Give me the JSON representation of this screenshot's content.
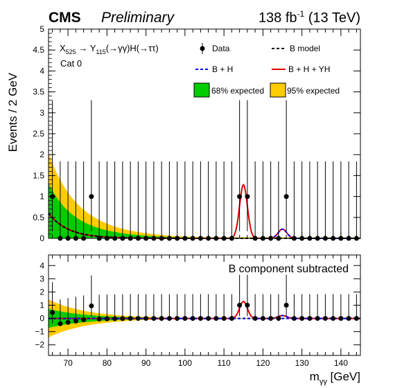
{
  "header": {
    "experiment": "CMS",
    "status": "Preliminary",
    "lumi_prefix": "138 fb",
    "lumi_exp": "-1",
    "lumi_suffix": " (13 TeV)"
  },
  "chart_data": [
    {
      "type": "line",
      "panel": "main",
      "ylabel": "Events / 2 GeV",
      "xlim": [
        65,
        145
      ],
      "ylim": [
        0,
        5
      ],
      "yticks": [
        0,
        0.5,
        1,
        1.5,
        2,
        2.5,
        3,
        3.5,
        4,
        4.5,
        5
      ],
      "grid": false,
      "process_label": {
        "x_main": "X",
        "x_sub": "525",
        "arrow1": " → Y",
        "y_sub": "115",
        "paren1": "(→γγ)H(→ττ)"
      },
      "category": "Cat 0",
      "legend": {
        "data": "Data",
        "b_model": "B  model",
        "b_h": "B + H",
        "b_h_yh": "B + H + YH",
        "band68": "68% expected",
        "band95": "95% expected"
      },
      "colors": {
        "data": "#000000",
        "b_model": "#000000",
        "b_h": "#0000ee",
        "b_h_yh": "#e00000",
        "band68": "#00cc00",
        "band95": "#ffcc00"
      },
      "data_points": {
        "x": [
          66,
          68,
          70,
          72,
          74,
          76,
          78,
          80,
          82,
          84,
          86,
          88,
          90,
          92,
          94,
          96,
          98,
          100,
          102,
          104,
          106,
          108,
          110,
          112,
          114,
          116,
          118,
          120,
          122,
          124,
          126,
          128,
          130,
          132,
          134,
          136,
          138,
          140,
          142,
          144
        ],
        "y": [
          1,
          0,
          0,
          0,
          0,
          1,
          0,
          0,
          0,
          0,
          0,
          0,
          0,
          0,
          0,
          0,
          0,
          0,
          0,
          0,
          0,
          0,
          0,
          0,
          1,
          1,
          0,
          0,
          0,
          0,
          1,
          0,
          0,
          0,
          0,
          0,
          0,
          0,
          0,
          0
        ],
        "err_up": [
          2.3,
          1.84,
          1.84,
          1.84,
          1.84,
          2.3,
          1.84,
          1.84,
          1.84,
          1.84,
          1.84,
          1.84,
          1.84,
          1.84,
          1.84,
          1.84,
          1.84,
          1.84,
          1.84,
          1.84,
          1.84,
          1.84,
          1.84,
          1.84,
          2.3,
          2.3,
          1.84,
          1.84,
          1.84,
          1.84,
          2.3,
          1.84,
          1.84,
          1.84,
          1.84,
          1.84,
          1.84,
          1.84,
          1.84,
          1.84
        ],
        "err_down": [
          0.83,
          0,
          0,
          0,
          0,
          0.83,
          0,
          0,
          0,
          0,
          0,
          0,
          0,
          0,
          0,
          0,
          0,
          0,
          0,
          0,
          0,
          0,
          0,
          0,
          0.83,
          0.83,
          0,
          0,
          0,
          0,
          0.83,
          0,
          0,
          0,
          0,
          0,
          0,
          0,
          0,
          0
        ]
      },
      "background": {
        "norm": 0.6,
        "x0": 65,
        "decay": 5.0
      },
      "signal_yh": {
        "mean": 115,
        "amplitude": 1.28,
        "sigma": 1.0
      },
      "signal_h": {
        "mean": 125,
        "amplitude": 0.22,
        "sigma": 1.1
      }
    },
    {
      "type": "line",
      "panel": "ratio",
      "xlabel": "m",
      "xlabel_sub": "γγ",
      "xlabel_unit": " [GeV]",
      "xlim": [
        65,
        145
      ],
      "ylim": [
        -2.8,
        4.8
      ],
      "xticks": [
        70,
        80,
        90,
        100,
        110,
        120,
        130,
        140
      ],
      "yticks": [
        -2,
        -1,
        0,
        1,
        2,
        3,
        4
      ],
      "annotation": "B component subtracted",
      "data_points": {
        "x": [
          66,
          68,
          70,
          72,
          74,
          76,
          78,
          80,
          82,
          84,
          86,
          88,
          90,
          92,
          94,
          96,
          98,
          100,
          102,
          104,
          106,
          108,
          110,
          112,
          114,
          116,
          118,
          120,
          122,
          124,
          126,
          128,
          130,
          132,
          134,
          136,
          138,
          140,
          142,
          144
        ],
        "y": [
          0.45,
          -0.4,
          -0.3,
          -0.2,
          -0.1,
          0.95,
          -0.05,
          -0.03,
          -0.02,
          -0.01,
          0,
          0,
          0,
          0,
          0,
          0,
          0,
          0,
          0,
          0,
          0,
          0,
          0,
          0,
          1.0,
          1.0,
          0,
          0,
          0,
          0,
          1.0,
          0,
          0,
          0,
          0,
          0,
          0,
          0,
          0,
          0
        ],
        "err_up": [
          2.3,
          1.84,
          1.84,
          1.84,
          1.84,
          2.3,
          1.84,
          1.84,
          1.84,
          1.84,
          1.84,
          1.84,
          1.84,
          1.84,
          1.84,
          1.84,
          1.84,
          1.84,
          1.84,
          1.84,
          1.84,
          1.84,
          1.84,
          1.84,
          2.3,
          2.3,
          1.84,
          1.84,
          1.84,
          1.84,
          2.3,
          1.84,
          1.84,
          1.84,
          1.84,
          1.84,
          1.84,
          1.84,
          1.84,
          1.84
        ],
        "err_down": [
          0.83,
          0,
          0,
          0,
          0,
          0.83,
          0,
          0,
          0,
          0,
          0,
          0,
          0,
          0,
          0,
          0,
          0,
          0,
          0,
          0,
          0,
          0,
          0,
          0,
          0.83,
          0.83,
          0,
          0,
          0,
          0,
          0.83,
          0,
          0,
          0,
          0,
          0,
          0,
          0,
          0,
          0
        ]
      }
    }
  ]
}
